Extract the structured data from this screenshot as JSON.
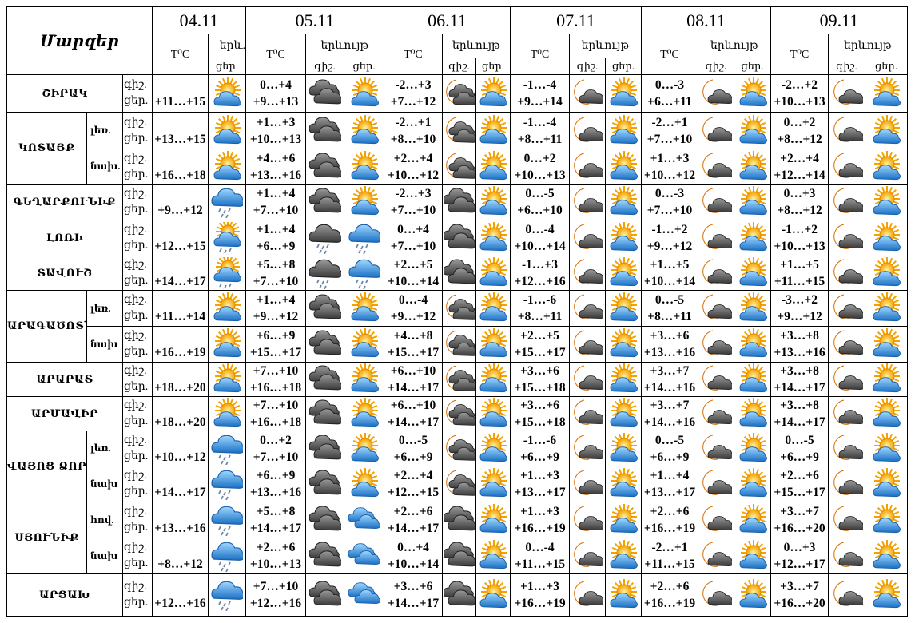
{
  "header": {
    "title": "Մարզեր",
    "dates": [
      "04.11",
      "05.11",
      "06.11",
      "07.11",
      "08.11",
      "09.11"
    ],
    "temp_label": "T⁰C",
    "phenomenon_short": "երև.",
    "phenomenon": "երևույթ",
    "night": "գիշ.",
    "day": "ցեր."
  },
  "labels": {
    "night": "գիշ.",
    "day": "ցեր."
  },
  "rows": [
    {
      "region": "ՇԻՐԱԿ",
      "sub": "",
      "first": "+11…+15",
      "icon0": "sun-cloud",
      "days": [
        {
          "n": "0…+4",
          "d": "+9…+13",
          "in": "dark-clouds",
          "id": "sun-cloud"
        },
        {
          "n": "-2…+3",
          "d": "+7…+12",
          "in": "moon-dark-clouds",
          "id": "sun-cloud"
        },
        {
          "n": "-1…-4",
          "d": "+9…+14",
          "in": "moon-cloud",
          "id": "sun-cloud"
        },
        {
          "n": "0…-3",
          "d": "+6…+11",
          "in": "moon-cloud",
          "id": "sun-cloud"
        },
        {
          "n": "-2…+2",
          "d": "+10…+13",
          "in": "moon-cloud",
          "id": "sun-cloud"
        }
      ]
    },
    {
      "region": "ԿՈՏԱՅՔ",
      "sub": "լեռ.",
      "span": 2,
      "first": "+13…+15",
      "icon0": "sun-cloud",
      "days": [
        {
          "n": "+1…+3",
          "d": "+10…+13",
          "in": "dark-clouds",
          "id": "sun-cloud"
        },
        {
          "n": "-2…+1",
          "d": "+8…+10",
          "in": "moon-dark-clouds",
          "id": "sun-cloud"
        },
        {
          "n": "-1…-4",
          "d": "+8…+11",
          "in": "moon-cloud",
          "id": "sun-cloud"
        },
        {
          "n": "-2…+1",
          "d": "+7…+10",
          "in": "moon-cloud",
          "id": "sun-cloud"
        },
        {
          "n": "0…+2",
          "d": "+8…+12",
          "in": "moon-cloud",
          "id": "sun-cloud"
        }
      ]
    },
    {
      "region": "",
      "sub": "նախ.",
      "first": "+16…+18",
      "icon0": "sun-cloud",
      "days": [
        {
          "n": "+4…+6",
          "d": "+13…+16",
          "in": "dark-clouds",
          "id": "sun-cloud"
        },
        {
          "n": "+2…+4",
          "d": "+10…+12",
          "in": "moon-dark-clouds",
          "id": "sun-cloud"
        },
        {
          "n": "0…+2",
          "d": "+10…+13",
          "in": "moon-cloud",
          "id": "sun-cloud"
        },
        {
          "n": "+1…+3",
          "d": "+10…+12",
          "in": "moon-cloud",
          "id": "sun-cloud"
        },
        {
          "n": "+2…+4",
          "d": "+12…+14",
          "in": "moon-cloud",
          "id": "sun-cloud"
        }
      ]
    },
    {
      "region": "ԳԵՂԱՐՔՈՒՆԻՔ",
      "sub": "",
      "first": "+9…+12",
      "icon0": "rain-cloud",
      "days": [
        {
          "n": "+1…+4",
          "d": "+7…+10",
          "in": "dark-clouds",
          "id": "sun-cloud"
        },
        {
          "n": "-2…+3",
          "d": "+7…+10",
          "in": "dark-clouds",
          "id": "sun-cloud"
        },
        {
          "n": "0…-5",
          "d": "+6…+10",
          "in": "moon-cloud",
          "id": "sun-cloud"
        },
        {
          "n": "0…-3",
          "d": "+7…+10",
          "in": "moon-cloud",
          "id": "sun-cloud"
        },
        {
          "n": "0…+3",
          "d": "+8…+12",
          "in": "moon-cloud",
          "id": "sun-cloud"
        }
      ]
    },
    {
      "region": "ԼՈՌԻ",
      "sub": "",
      "first": "+12…+15",
      "icon0": "sun-rain",
      "days": [
        {
          "n": "+1…+4",
          "d": "+6…+9",
          "in": "dark-rain",
          "id": "rain-cloud"
        },
        {
          "n": "0…+4",
          "d": "+7…+10",
          "in": "dark-clouds",
          "id": "sun-cloud"
        },
        {
          "n": "0…-4",
          "d": "+10…+14",
          "in": "moon-cloud",
          "id": "sun-cloud"
        },
        {
          "n": "-1…+2",
          "d": "+9…+12",
          "in": "moon-cloud",
          "id": "sun-cloud"
        },
        {
          "n": "-1…+2",
          "d": "+10…+13",
          "in": "moon-cloud",
          "id": "sun-cloud"
        }
      ]
    },
    {
      "region": "ՏԱՎՈՒՇ",
      "sub": "",
      "first": "+14…+17",
      "icon0": "sun-rain",
      "days": [
        {
          "n": "+5…+8",
          "d": "+7…+10",
          "in": "dark-rain",
          "id": "rain-cloud"
        },
        {
          "n": "+2…+5",
          "d": "+10…+14",
          "in": "dark-clouds",
          "id": "sun-cloud"
        },
        {
          "n": "-1…+3",
          "d": "+12…+16",
          "in": "moon-cloud",
          "id": "sun-cloud"
        },
        {
          "n": "+1…+5",
          "d": "+10…+14",
          "in": "moon-cloud",
          "id": "sun-cloud"
        },
        {
          "n": "+1…+5",
          "d": "+11…+15",
          "in": "moon-cloud",
          "id": "sun-cloud"
        }
      ]
    },
    {
      "region": "ԱՐԱԳԱԾՈՏՆ",
      "sub": "լեռ.",
      "span": 2,
      "first": "+11…+14",
      "icon0": "sun-cloud",
      "days": [
        {
          "n": "+1…+4",
          "d": "+9…+12",
          "in": "dark-clouds",
          "id": "sun-cloud"
        },
        {
          "n": "0…-4",
          "d": "+9…+12",
          "in": "moon-dark-clouds",
          "id": "sun-cloud"
        },
        {
          "n": "-1…-6",
          "d": "+8…+11",
          "in": "moon-cloud",
          "id": "sun-cloud"
        },
        {
          "n": "0…-5",
          "d": "+8…+11",
          "in": "moon-cloud",
          "id": "sun-cloud"
        },
        {
          "n": "-3…+2",
          "d": "+9…+12",
          "in": "moon-cloud",
          "id": "sun-cloud"
        }
      ]
    },
    {
      "region": "",
      "sub": "նախ",
      "first": "+16…+19",
      "icon0": "sun-cloud",
      "days": [
        {
          "n": "+6…+9",
          "d": "+15…+17",
          "in": "dark-clouds",
          "id": "sun-cloud"
        },
        {
          "n": "+4…+8",
          "d": "+15…+17",
          "in": "moon-dark-clouds",
          "id": "sun-cloud"
        },
        {
          "n": "+2…+5",
          "d": "+15…+17",
          "in": "moon-cloud",
          "id": "sun-cloud"
        },
        {
          "n": "+3…+6",
          "d": "+13…+16",
          "in": "moon-cloud",
          "id": "sun-cloud"
        },
        {
          "n": "+3…+8",
          "d": "+13…+16",
          "in": "moon-cloud",
          "id": "sun-cloud"
        }
      ]
    },
    {
      "region": "ԱՐԱՐԱՏ",
      "sub": "",
      "first": "+18…+20",
      "icon0": "sun-cloud",
      "days": [
        {
          "n": "+7…+10",
          "d": "+16…+18",
          "in": "dark-clouds",
          "id": "sun-cloud"
        },
        {
          "n": "+6…+10",
          "d": "+14…+17",
          "in": "moon-dark-clouds",
          "id": "sun-cloud"
        },
        {
          "n": "+3…+6",
          "d": "+15…+18",
          "in": "moon-cloud",
          "id": "sun-cloud"
        },
        {
          "n": "+3…+7",
          "d": "+14…+16",
          "in": "moon-cloud",
          "id": "sun-cloud"
        },
        {
          "n": "+3…+8",
          "d": "+14…+17",
          "in": "moon-cloud",
          "id": "sun-cloud"
        }
      ]
    },
    {
      "region": "ԱՐՄԱՎԻՐ",
      "sub": "",
      "first": "+18…+20",
      "icon0": "sun-cloud",
      "days": [
        {
          "n": "+7…+10",
          "d": "+16…+18",
          "in": "dark-clouds",
          "id": "sun-cloud"
        },
        {
          "n": "+6…+10",
          "d": "+14…+17",
          "in": "moon-dark-clouds",
          "id": "sun-cloud"
        },
        {
          "n": "+3…+6",
          "d": "+15…+18",
          "in": "moon-cloud",
          "id": "sun-cloud"
        },
        {
          "n": "+3…+7",
          "d": "+14…+16",
          "in": "moon-cloud",
          "id": "sun-cloud"
        },
        {
          "n": "+3…+8",
          "d": "+14…+17",
          "in": "moon-cloud",
          "id": "sun-cloud"
        }
      ]
    },
    {
      "region": "ՎԱՅՈՑ ՁՈՐ",
      "sub": "լեռ.",
      "span": 2,
      "first": "+10…+12",
      "icon0": "rain-cloud",
      "days": [
        {
          "n": "0…+2",
          "d": "+7…+10",
          "in": "dark-clouds",
          "id": "sun-cloud"
        },
        {
          "n": "0…-5",
          "d": "+6…+9",
          "in": "moon-dark-clouds",
          "id": "sun-cloud"
        },
        {
          "n": "-1…-6",
          "d": "+6…+9",
          "in": "moon-cloud",
          "id": "sun-cloud"
        },
        {
          "n": "0…-5",
          "d": "+6…+9",
          "in": "moon-cloud",
          "id": "sun-cloud"
        },
        {
          "n": "0…-5",
          "d": "+6…+9",
          "in": "moon-cloud",
          "id": "sun-cloud"
        }
      ]
    },
    {
      "region": "",
      "sub": "նախ",
      "first": "+14…+17",
      "icon0": "rain-cloud",
      "days": [
        {
          "n": "+6…+9",
          "d": "+13…+16",
          "in": "dark-clouds",
          "id": "sun-cloud"
        },
        {
          "n": "+2…+4",
          "d": "+12…+15",
          "in": "moon-dark-clouds",
          "id": "sun-cloud"
        },
        {
          "n": "+1…+3",
          "d": "+13…+17",
          "in": "moon-cloud",
          "id": "sun-cloud"
        },
        {
          "n": "+1…+4",
          "d": "+13…+17",
          "in": "moon-cloud",
          "id": "sun-cloud"
        },
        {
          "n": "+2…+6",
          "d": "+15…+17",
          "in": "moon-cloud",
          "id": "sun-cloud"
        }
      ]
    },
    {
      "region": "ՍՅՈՒՆԻՔ",
      "sub": "հով.",
      "span": 2,
      "first": "+13…+16",
      "icon0": "rain-cloud",
      "days": [
        {
          "n": "+5…+8",
          "d": "+14…+17",
          "in": "dark-clouds",
          "id": "blue-clouds"
        },
        {
          "n": "+2…+6",
          "d": "+14…+17",
          "in": "dark-clouds",
          "id": "sun-cloud"
        },
        {
          "n": "+1…+3",
          "d": "+16…+19",
          "in": "moon-cloud",
          "id": "sun-cloud"
        },
        {
          "n": "+2…+6",
          "d": "+16…+19",
          "in": "moon-cloud",
          "id": "sun-cloud"
        },
        {
          "n": "+3…+7",
          "d": "+16…+20",
          "in": "moon-cloud",
          "id": "sun-cloud"
        }
      ]
    },
    {
      "region": "",
      "sub": "նախ",
      "first": "+8…+12",
      "icon0": "rain-cloud",
      "days": [
        {
          "n": "+2…+6",
          "d": "+10…+13",
          "in": "dark-clouds",
          "id": "blue-clouds"
        },
        {
          "n": "0…+4",
          "d": "+10…+14",
          "in": "dark-clouds",
          "id": "sun-cloud"
        },
        {
          "n": "0…-4",
          "d": "+11…+15",
          "in": "moon-cloud",
          "id": "sun-cloud"
        },
        {
          "n": "-2…+1",
          "d": "+11…+15",
          "in": "moon-cloud",
          "id": "sun-cloud"
        },
        {
          "n": "0…+3",
          "d": "+12…+17",
          "in": "moon-cloud",
          "id": "sun-cloud"
        }
      ]
    },
    {
      "region": "ԱՐՑԱԽ",
      "sub": "",
      "first": "+12…+16",
      "icon0": "rain-cloud",
      "days": [
        {
          "n": "+7…+10",
          "d": "+12…+16",
          "in": "dark-clouds",
          "id": "blue-clouds"
        },
        {
          "n": "+3…+6",
          "d": "+14…+17",
          "in": "dark-clouds",
          "id": "sun-cloud"
        },
        {
          "n": "+1…+3",
          "d": "+16…+19",
          "in": "moon-cloud",
          "id": "sun-cloud"
        },
        {
          "n": "+2…+6",
          "d": "+16…+19",
          "in": "moon-cloud",
          "id": "sun-cloud"
        },
        {
          "n": "+3…+7",
          "d": "+16…+20",
          "in": "moon-cloud",
          "id": "sun-cloud"
        }
      ]
    }
  ]
}
